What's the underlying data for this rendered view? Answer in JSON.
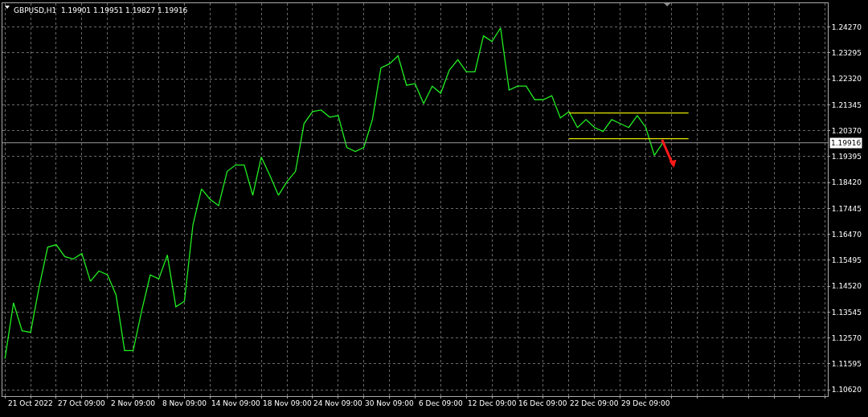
{
  "chart_data": {
    "type": "line",
    "title": "GBPUSD,H1  1.19901 1.19951 1.19827 1.19916",
    "categories": [
      null,
      null,
      null,
      "21 Oct 2022",
      null,
      null,
      null,
      null,
      null,
      "27 Oct 09:00",
      null,
      null,
      null,
      null,
      null,
      "2 Nov 09:00",
      null,
      null,
      null,
      null,
      null,
      "8 Nov 09:00",
      null,
      null,
      null,
      null,
      null,
      "14 Nov 09:00",
      null,
      null,
      null,
      null,
      null,
      "18 Nov 09:00",
      null,
      null,
      null,
      null,
      null,
      "24 Nov 09:00",
      null,
      null,
      null,
      null,
      null,
      "30 Nov 09:00",
      null,
      null,
      null,
      null,
      null,
      "6 Dec 09:00",
      null,
      null,
      null,
      null,
      null,
      "12 Dec 09:00",
      null,
      null,
      null,
      null,
      null,
      "16 Dec 09:00",
      null,
      null,
      null,
      null,
      null,
      "22 Dec 09:00",
      null,
      null,
      null,
      null,
      null,
      "29 Dec 09:00",
      null,
      null,
      null,
      null,
      null,
      null,
      null,
      null,
      null,
      null,
      null,
      null,
      null,
      null,
      null,
      null,
      null,
      null,
      null,
      null,
      null
    ],
    "series": [
      {
        "color": "#22ee22",
        "values": [
          1.1179,
          1.1389,
          1.1284,
          1.1278,
          1.1449,
          1.1599,
          1.1608,
          1.1563,
          1.1554,
          1.1575,
          1.147,
          1.1509,
          1.1494,
          1.1419,
          1.1209,
          1.1209,
          1.1359,
          1.1494,
          1.1479,
          1.1569,
          1.1374,
          1.1395,
          1.1683,
          1.1818,
          1.1779,
          1.1755,
          1.1884,
          1.1908,
          1.1908,
          1.1794,
          1.1938,
          1.1869,
          1.1794,
          1.1845,
          1.1884,
          1.2064,
          1.2109,
          1.2115,
          1.2088,
          1.2094,
          1.1974,
          1.1959,
          1.1974,
          1.2079,
          1.2274,
          1.2289,
          1.2319,
          1.2208,
          1.2214,
          1.2139,
          1.2205,
          1.2178,
          1.2265,
          1.2304,
          1.2259,
          1.2259,
          1.2394,
          1.2373,
          1.2424,
          1.219,
          1.2205,
          1.2205,
          1.2154,
          1.2154,
          1.2169,
          1.2085,
          1.2109,
          1.2049,
          1.2079,
          1.2049,
          1.2034,
          1.2079,
          1.2064,
          1.2049,
          1.2094,
          1.2049,
          1.1944,
          1.1992,
          null,
          null,
          null,
          null,
          null,
          null,
          null,
          null,
          null,
          null,
          null,
          null,
          null,
          null,
          null,
          null,
          null,
          null,
          null
        ]
      },
      {
        "color": "#e6e600",
        "values": [
          null,
          null,
          null,
          null,
          null,
          null,
          null,
          null,
          null,
          null,
          null,
          null,
          null,
          null,
          null,
          null,
          null,
          null,
          null,
          null,
          null,
          null,
          null,
          null,
          null,
          null,
          null,
          null,
          null,
          null,
          null,
          null,
          null,
          null,
          null,
          null,
          null,
          null,
          null,
          null,
          null,
          null,
          null,
          null,
          null,
          null,
          null,
          null,
          null,
          null,
          null,
          null,
          null,
          null,
          null,
          null,
          null,
          null,
          null,
          null,
          null,
          null,
          null,
          null,
          null,
          null,
          1.2104,
          1.2104,
          1.2104,
          1.2104,
          1.2104,
          1.2104,
          1.2104,
          1.2104,
          1.2104,
          1.2104,
          1.2104,
          1.2104,
          1.2104,
          1.2104,
          1.2104,
          null,
          null,
          null,
          null,
          null,
          null,
          null,
          null,
          null,
          null,
          null,
          null,
          null,
          null,
          null,
          null
        ]
      },
      {
        "color": "#e6e600",
        "values": [
          null,
          null,
          null,
          null,
          null,
          null,
          null,
          null,
          null,
          null,
          null,
          null,
          null,
          null,
          null,
          null,
          null,
          null,
          null,
          null,
          null,
          null,
          null,
          null,
          null,
          null,
          null,
          null,
          null,
          null,
          null,
          null,
          null,
          null,
          null,
          null,
          null,
          null,
          null,
          null,
          null,
          null,
          null,
          null,
          null,
          null,
          null,
          null,
          null,
          null,
          null,
          null,
          null,
          null,
          null,
          null,
          null,
          null,
          null,
          null,
          null,
          null,
          null,
          null,
          null,
          null,
          1.2007,
          1.2007,
          1.2007,
          1.2007,
          1.2007,
          1.2007,
          1.2007,
          1.2007,
          1.2007,
          1.2007,
          1.2007,
          1.2007,
          1.2007,
          1.2007,
          1.2007,
          null,
          null,
          null,
          null,
          null,
          null,
          null,
          null,
          null,
          null,
          null,
          null,
          null,
          null,
          null,
          null
        ]
      }
    ],
    "ylim": [
      1.1038,
      1.2517
    ],
    "yticks": [
      {
        "value": 1.2427,
        "label": "1.24270"
      },
      {
        "value": 1.23295,
        "label": "1.23295"
      },
      {
        "value": 1.2232,
        "label": "1.22320"
      },
      {
        "value": 1.21345,
        "label": "1.21345"
      },
      {
        "value": 1.2037,
        "label": "1.20370"
      },
      {
        "value": 1.19395,
        "label": "1.19395"
      },
      {
        "value": 1.1842,
        "label": "1.18420"
      },
      {
        "value": 1.17445,
        "label": "1.17445"
      },
      {
        "value": 1.1647,
        "label": "1.16470"
      },
      {
        "value": 1.15495,
        "label": "1.15495"
      },
      {
        "value": 1.1452,
        "label": "1.14520"
      },
      {
        "value": 1.13545,
        "label": "1.13545"
      },
      {
        "value": 1.1257,
        "label": "1.12570"
      },
      {
        "value": 1.11595,
        "label": "1.11595"
      },
      {
        "value": 1.1062,
        "label": "1.10620"
      }
    ],
    "ref_lines": [
      {
        "axis": "y",
        "value": 1.19916,
        "label": "1.19916",
        "color": "#9a9a9a"
      }
    ],
    "grid": true,
    "line_style": "solid"
  }
}
